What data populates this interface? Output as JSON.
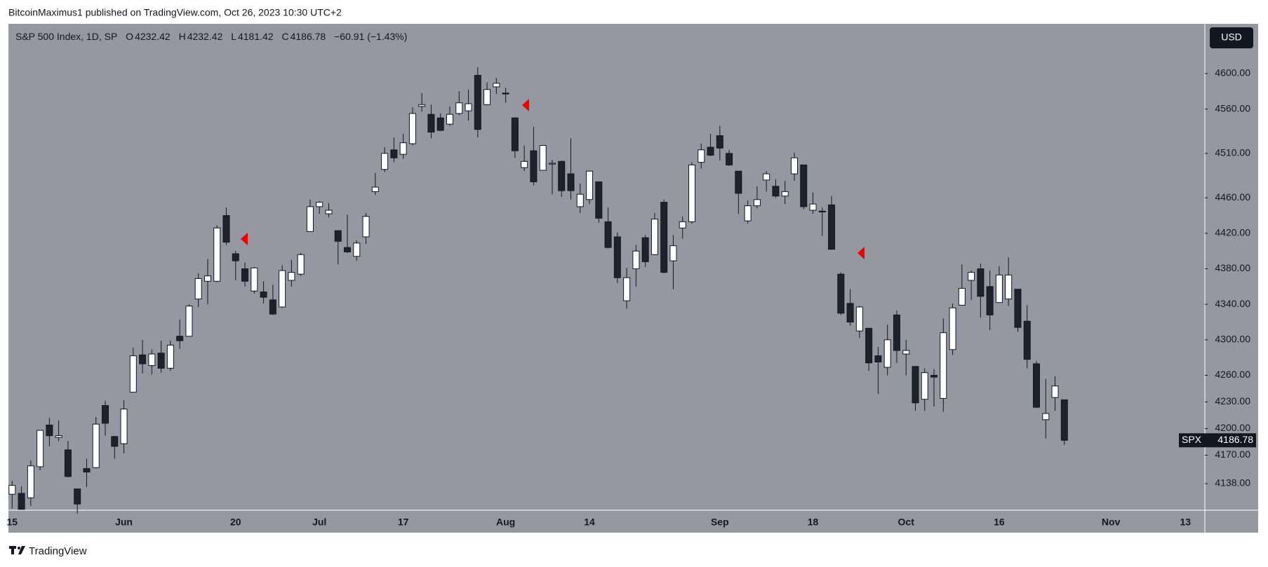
{
  "header": "BitcoinMaximus1 published on TradingView.com, Oct 26, 2023 10:30 UTC+2",
  "footer": "TradingView",
  "chart_data": {
    "type": "candlestick",
    "title": "S&P 500 Index, 1D, SP",
    "ohlc_labels": [
      "O",
      "H",
      "L",
      "C"
    ],
    "change_label": "−60.91 (−1.43%)",
    "currency": "USD",
    "symbol": "SPX",
    "up_color": "#ffffff",
    "down_color": "#1e222d",
    "border_color": "#131722",
    "background": "#9598a1",
    "grid": false,
    "categories": [
      "15",
      null,
      null,
      null,
      null,
      null,
      null,
      null,
      null,
      null,
      null,
      null,
      "Jun",
      null,
      null,
      null,
      null,
      null,
      null,
      null,
      null,
      null,
      null,
      null,
      "20",
      null,
      null,
      null,
      null,
      null,
      null,
      null,
      null,
      "Jul",
      null,
      null,
      null,
      null,
      null,
      null,
      null,
      null,
      "17",
      null,
      null,
      null,
      null,
      null,
      null,
      null,
      null,
      null,
      null,
      "Aug",
      null,
      null,
      null,
      null,
      null,
      null,
      null,
      null,
      "14",
      null,
      null,
      null,
      null,
      null,
      null,
      null,
      null,
      null,
      null,
      null,
      null,
      null,
      "Sep",
      null,
      null,
      null,
      null,
      null,
      null,
      null,
      null,
      null,
      "18",
      null,
      null,
      null,
      null,
      null,
      null,
      null,
      null,
      null,
      "Oct",
      null,
      null,
      null,
      null,
      null,
      null,
      null,
      null,
      null,
      "16",
      null,
      null,
      null,
      null,
      null,
      null,
      null,
      null,
      null,
      null,
      null,
      "Nov",
      null,
      null,
      null,
      null,
      null,
      null,
      null,
      "13"
    ],
    "open": [
      4126,
      4127,
      4122,
      4157,
      4204,
      4190,
      4176,
      4132,
      4155,
      4156,
      4226,
      4191,
      4183,
      4241,
      4283,
      4271,
      4285,
      4268,
      4304,
      4304,
      4346,
      4366,
      4366,
      4440,
      4397,
      4380,
      4355,
      4354,
      4345,
      4337,
      4367,
      4374,
      4422,
      4450,
      4442,
      4423,
      4404,
      4394,
      4416,
      4467,
      4492,
      4514,
      4509,
      4521,
      4563,
      4554,
      4550,
      4543,
      4555,
      4558,
      4598,
      4565,
      4585,
      4578,
      4550,
      4494,
      4513,
      4491,
      4498,
      4501,
      4487,
      4450,
      4458,
      4478,
      4433,
      4416,
      4344,
      4380,
      4415,
      4396,
      4455,
      4389,
      4426,
      4433,
      4500,
      4517,
      4530,
      4510,
      4490,
      4434,
      4451,
      4480,
      4473,
      4462,
      4487,
      4497,
      4446,
      4445,
      4452,
      4374,
      4341,
      4310,
      4313,
      4282,
      4269,
      4328,
      4284,
      4270,
      4233,
      4260,
      4234,
      4289,
      4339,
      4367,
      4380,
      4360,
      4342,
      4346,
      4357,
      4321,
      4273,
      4210,
      4235,
      4232.42,
      null,
      null,
      null,
      null,
      null,
      null,
      null,
      null,
      null,
      null,
      null,
      null,
      null
    ],
    "high": [
      4141,
      4135,
      4164,
      4198,
      4212,
      4209,
      4186,
      4132,
      4166,
      4213,
      4231,
      4192,
      4232,
      4291,
      4300,
      4289,
      4299,
      4299,
      4323,
      4340,
      4375,
      4391,
      4429,
      4449,
      4400,
      4387,
      4382,
      4366,
      4362,
      4384,
      4390,
      4398,
      4458,
      4456,
      4454,
      4423,
      4441,
      4412,
      4443,
      4488,
      4517,
      4528,
      4532,
      4562,
      4578,
      4565,
      4555,
      4563,
      4580,
      4582,
      4607,
      4590,
      4595,
      4584,
      4551,
      4519,
      4540,
      4519,
      4503,
      4502,
      4527,
      4476,
      4490,
      4478,
      4449,
      4421,
      4381,
      4407,
      4418,
      4443,
      4458,
      4418,
      4439,
      4500,
      4521,
      4532,
      4541,
      4514,
      4490,
      4457,
      4473,
      4490,
      4481,
      4479,
      4511,
      4497,
      4466,
      4449,
      4462,
      4376,
      4357,
      4338,
      4313,
      4292,
      4317,
      4333,
      4300,
      4270,
      4268,
      4267,
      4324,
      4341,
      4385,
      4378,
      4386,
      4378,
      4383,
      4393,
      4357,
      4339,
      4276,
      4256,
      4259,
      4232.42,
      null,
      null,
      null,
      null,
      null,
      null,
      null,
      null,
      null,
      null,
      null,
      null,
      null
    ],
    "low": [
      4110,
      4109,
      4113,
      4153,
      4180,
      4186,
      4145,
      4104,
      4134,
      4155,
      4192,
      4166,
      4172,
      4241,
      4262,
      4261,
      4263,
      4265,
      4290,
      4304,
      4337,
      4340,
      4365,
      4407,
      4367,
      4360,
      4352,
      4341,
      4328,
      4336,
      4360,
      4372,
      4422,
      4442,
      4438,
      4385,
      4398,
      4389,
      4408,
      4463,
      4489,
      4500,
      4504,
      4519,
      4557,
      4527,
      4535,
      4541,
      4553,
      4547,
      4528,
      4564,
      4577,
      4567,
      4505,
      4490,
      4474,
      4491,
      4464,
      4461,
      4458,
      4443,
      4453,
      4432,
      4403,
      4364,
      4335,
      4360,
      4382,
      4396,
      4375,
      4357,
      4414,
      4431,
      4493,
      4507,
      4502,
      4496,
      4442,
      4431,
      4448,
      4467,
      4460,
      4453,
      4479,
      4447,
      4442,
      4417,
      4402,
      4328,
      4316,
      4302,
      4265,
      4239,
      4260,
      4274,
      4260,
      4220,
      4220,
      4225,
      4219,
      4283,
      4339,
      4345,
      4325,
      4311,
      4342,
      4338,
      4309,
      4268,
      4223,
      4189,
      4220,
      4181.42,
      null,
      null,
      null,
      null,
      null,
      null,
      null,
      null,
      null,
      null,
      null,
      null,
      null
    ],
    "close": [
      4136,
      4109,
      4158,
      4198,
      4192,
      4192,
      4146,
      4115,
      4151,
      4205,
      4206,
      4180,
      4222,
      4282,
      4273,
      4284,
      4268,
      4294,
      4299,
      4338,
      4369,
      4372,
      4426,
      4410,
      4389,
      4366,
      4381,
      4348,
      4329,
      4378,
      4376,
      4396,
      4450,
      4455,
      4446,
      4411,
      4399,
      4409,
      4439,
      4472,
      4510,
      4505,
      4522,
      4555,
      4565,
      4534,
      4536,
      4554,
      4567,
      4566,
      4537,
      4582,
      4589,
      4577,
      4513,
      4501,
      4478,
      4519,
      4499,
      4468,
      4468,
      4464,
      4490,
      4437,
      4404,
      4370,
      4370,
      4400,
      4388,
      4436,
      4376,
      4406,
      4433,
      4497,
      4514,
      4508,
      4516,
      4497,
      4465,
      4451,
      4458,
      4487,
      4462,
      4467,
      4505,
      4450,
      4453,
      4444,
      4402,
      4330,
      4320,
      4337,
      4274,
      4275,
      4300,
      4288,
      4288,
      4229,
      4263,
      4258,
      4308,
      4336,
      4358,
      4376,
      4349,
      4328,
      4373,
      4373,
      4314,
      4278,
      4224,
      4217,
      4248,
      4186.78,
      null,
      null,
      null,
      null,
      null,
      null,
      null,
      null,
      null,
      null,
      null,
      null,
      null
    ],
    "ylim": [
      4108,
      4656
    ],
    "yticks": [
      {
        "value": 4138,
        "label": "4138.00"
      },
      {
        "value": 4170,
        "label": "4170.00"
      },
      {
        "value": 4200,
        "label": "4200.00"
      },
      {
        "value": 4230,
        "label": "4230.00"
      },
      {
        "value": 4260,
        "label": "4260.00"
      },
      {
        "value": 4300,
        "label": "4300.00"
      },
      {
        "value": 4340,
        "label": "4340.00"
      },
      {
        "value": 4380,
        "label": "4380.00"
      },
      {
        "value": 4420,
        "label": "4420.00"
      },
      {
        "value": 4460,
        "label": "4460.00"
      },
      {
        "value": 4510,
        "label": "4510.00"
      },
      {
        "value": 4560,
        "label": "4560.00"
      },
      {
        "value": 4600,
        "label": "4600.00"
      }
    ]
  }
}
